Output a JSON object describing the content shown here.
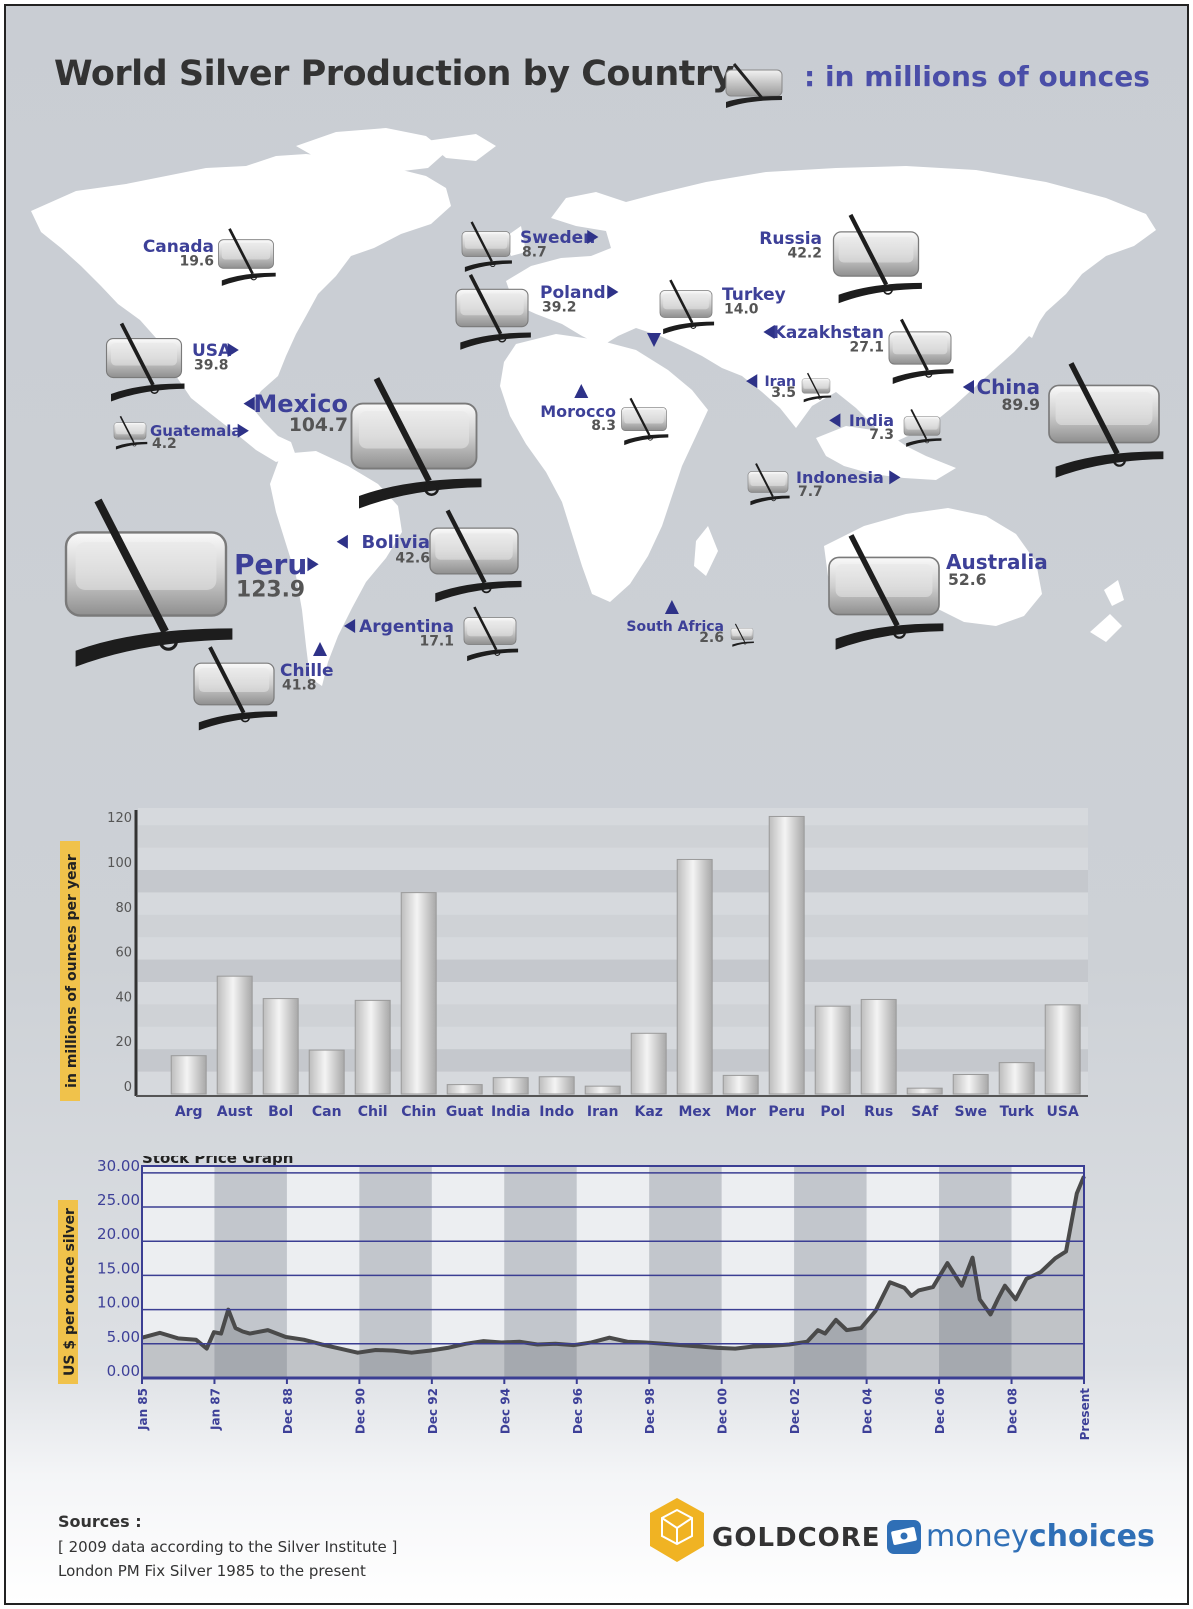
{
  "header": {
    "title": "World Silver Production by Country",
    "subtitle": ": in millions of ounces"
  },
  "map": {
    "countries": [
      {
        "name": "Canada",
        "value": "19.6"
      },
      {
        "name": "USA",
        "value": "39.8"
      },
      {
        "name": "Mexico",
        "value": "104.7"
      },
      {
        "name": "Guatemala",
        "value": "4.2"
      },
      {
        "name": "Peru",
        "value": "123.9"
      },
      {
        "name": "Bolivia",
        "value": "42.6"
      },
      {
        "name": "Argentina",
        "value": "17.1"
      },
      {
        "name": "Chille",
        "value": "41.8"
      },
      {
        "name": "Sweden",
        "value": "8.7"
      },
      {
        "name": "Poland",
        "value": "39.2"
      },
      {
        "name": "Morocco",
        "value": "8.3"
      },
      {
        "name": "South Africa",
        "value": "2.6"
      },
      {
        "name": "Russia",
        "value": "42.2"
      },
      {
        "name": "Turkey",
        "value": "14.0"
      },
      {
        "name": "Kazakhstan",
        "value": "27.1"
      },
      {
        "name": "Iran",
        "value": "3.5"
      },
      {
        "name": "China",
        "value": "89.9"
      },
      {
        "name": "India",
        "value": "7.3"
      },
      {
        "name": "Indonesia",
        "value": "7.7"
      },
      {
        "name": "Australia",
        "value": "52.6"
      }
    ]
  },
  "chart_data": [
    {
      "type": "bar",
      "ylabel": "in millions of ounces per year",
      "ylim": [
        0,
        125
      ],
      "yticks": [
        "0",
        "20",
        "40",
        "60",
        "80",
        "100",
        "120"
      ],
      "categories": [
        "Arg",
        "Aust",
        "Bol",
        "Can",
        "Chil",
        "Chin",
        "Guat",
        "India",
        "Indo",
        "Iran",
        "Kaz",
        "Mex",
        "Mor",
        "Peru",
        "Pol",
        "Rus",
        "SAf",
        "Swe",
        "Turk",
        "USA"
      ],
      "values": [
        17.1,
        52.6,
        42.6,
        19.6,
        41.8,
        89.9,
        4.2,
        7.3,
        7.7,
        3.5,
        27.1,
        104.7,
        8.3,
        123.9,
        39.2,
        42.2,
        2.6,
        8.7,
        14.0,
        39.8
      ]
    },
    {
      "type": "area",
      "title": "Stock Price Graph",
      "ylabel": "US $ per ounce silver",
      "ylim": [
        0,
        31
      ],
      "yticks": [
        "0.00",
        "5.00",
        "10.00",
        "15.00",
        "20.00",
        "25.00",
        "30.00"
      ],
      "xticks": [
        "Jan 85",
        "Jan 87",
        "Dec 88",
        "Dec 90",
        "Dec 92",
        "Dec 94",
        "Dec 96",
        "Dec 98",
        "Dec 00",
        "Dec 02",
        "Dec 04",
        "Dec 06",
        "Dec 08",
        "Present"
      ],
      "x": [
        1985.0,
        1985.5,
        1986.0,
        1986.5,
        1986.8,
        1987.0,
        1987.2,
        1987.4,
        1987.6,
        1987.8,
        1988.0,
        1988.5,
        1989.0,
        1989.5,
        1990.0,
        1990.5,
        1991.0,
        1991.5,
        1992.0,
        1992.5,
        1993.0,
        1993.5,
        1994.0,
        1994.5,
        1995.0,
        1995.5,
        1996.0,
        1996.5,
        1997.0,
        1997.5,
        1998.0,
        1998.5,
        1999.0,
        1999.5,
        2000.0,
        2000.5,
        2001.0,
        2001.5,
        2002.0,
        2002.5,
        2003.0,
        2003.5,
        2003.8,
        2004.0,
        2004.3,
        2004.6,
        2005.0,
        2005.4,
        2005.8,
        2006.2,
        2006.4,
        2006.6,
        2007.0,
        2007.4,
        2007.8,
        2008.1,
        2008.3,
        2008.6,
        2008.8,
        2009.0,
        2009.3,
        2009.6,
        2010.0,
        2010.4,
        2010.7,
        2011.0,
        2011.2
      ],
      "y": [
        5.9,
        6.6,
        5.8,
        5.6,
        4.3,
        6.7,
        6.5,
        10.0,
        7.3,
        6.8,
        6.5,
        7.0,
        6.0,
        5.6,
        4.9,
        4.3,
        3.7,
        4.1,
        4.0,
        3.7,
        4.0,
        4.4,
        5.0,
        5.4,
        5.2,
        5.3,
        4.9,
        5.0,
        4.8,
        5.2,
        5.9,
        5.3,
        5.2,
        5.0,
        4.8,
        4.6,
        4.4,
        4.3,
        4.6,
        4.7,
        4.9,
        5.3,
        7.0,
        6.5,
        8.5,
        7.0,
        7.3,
        9.8,
        14.0,
        13.2,
        12.0,
        12.8,
        13.3,
        16.8,
        13.5,
        17.6,
        11.5,
        9.3,
        11.5,
        13.5,
        11.5,
        14.5,
        15.5,
        17.5,
        18.5,
        27.0,
        29.5
      ]
    }
  ],
  "sources": {
    "title": "Sources :",
    "line1": "[ 2009 data according to the Silver Institute ]",
    "line2": "London PM Fix Silver 1985 to the present"
  },
  "logos": {
    "goldcore": "GOLDCORE",
    "mc_money": "money",
    "mc_choices": "choices"
  },
  "colors": {
    "accent": "#3d4098",
    "line": "#3b3e93",
    "label_bg": "#f0c24b",
    "gold": "#f0b323"
  }
}
